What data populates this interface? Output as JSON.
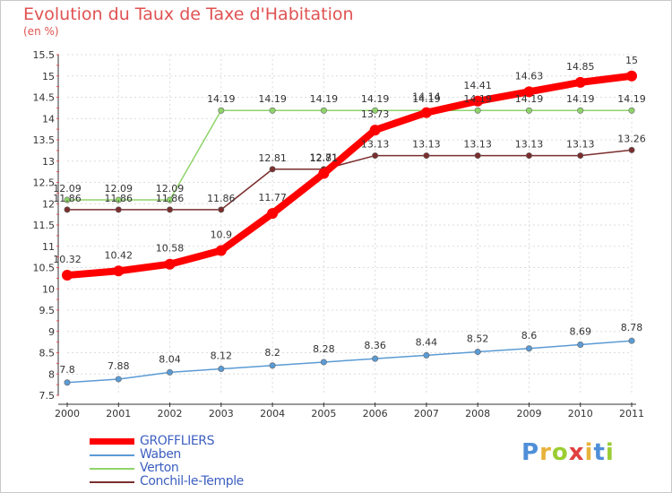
{
  "chart_data": {
    "type": "line",
    "title": "Evolution du Taux de Taxe d'Habitation",
    "ylabel": "(en %)",
    "xlabel": "",
    "x": [
      "2000",
      "2001",
      "2002",
      "2003",
      "2004",
      "2005",
      "2006",
      "2007",
      "2008",
      "2009",
      "2010",
      "2011"
    ],
    "ylim": [
      7.5,
      15.5
    ],
    "yticks": [
      "7.5",
      "8",
      "8.5",
      "9",
      "9.5",
      "10",
      "10.5",
      "11",
      "11.5",
      "12",
      "12.5",
      "13",
      "13.5",
      "14",
      "14.5",
      "15",
      "15.5"
    ],
    "grid": true,
    "legend_position": "bottom-left",
    "series": [
      {
        "name": "GROFFLIERS",
        "color": "#ff0000",
        "values": [
          10.32,
          10.42,
          10.58,
          10.9,
          11.77,
          12.71,
          13.73,
          14.14,
          14.41,
          14.63,
          14.85,
          15
        ],
        "labels": [
          "10.32",
          "10.42",
          "10.58",
          "10.9",
          "11.77",
          "12.71",
          "13.73",
          "14.14",
          "14.41",
          "14.63",
          "14.85",
          "15"
        ]
      },
      {
        "name": "Waben",
        "color": "#5b9bd5",
        "values": [
          7.8,
          7.88,
          8.04,
          8.12,
          8.2,
          8.28,
          8.36,
          8.44,
          8.52,
          8.6,
          8.69,
          8.78
        ],
        "labels": [
          "7.8",
          "7.88",
          "8.04",
          "8.12",
          "8.2",
          "8.28",
          "8.36",
          "8.44",
          "8.52",
          "8.6",
          "8.69",
          "8.78"
        ]
      },
      {
        "name": "Verton",
        "color": "#8fd46a",
        "values": [
          12.09,
          12.09,
          12.09,
          14.19,
          14.19,
          14.19,
          14.19,
          14.19,
          14.19,
          14.19,
          14.19,
          14.19
        ],
        "labels": [
          "12.09",
          "12.09",
          "12.09",
          "14.19",
          "14.19",
          "14.19",
          "14.19",
          "14.19",
          "14.19",
          "14.19",
          "14.19",
          "14.19"
        ]
      },
      {
        "name": "Conchil-le-Temple",
        "color": "#7a2e2e",
        "values": [
          11.86,
          11.86,
          11.86,
          11.86,
          12.81,
          12.81,
          13.13,
          13.13,
          13.13,
          13.13,
          13.13,
          13.26
        ],
        "labels": [
          "11.86",
          "11.86",
          "11.86",
          "11.86",
          "12.81",
          "12.81",
          "13.13",
          "13.13",
          "13.13",
          "13.13",
          "13.13",
          "13.26"
        ]
      }
    ]
  },
  "brand": {
    "logo_letters": [
      "P",
      "r",
      "o",
      "x",
      "i",
      "t",
      "i"
    ],
    "logo_colors": [
      "#4f8fd8",
      "#e8b23a",
      "#9acd32",
      "#e04040",
      "#e8b23a",
      "#4f8fd8",
      "#9acd32"
    ]
  }
}
